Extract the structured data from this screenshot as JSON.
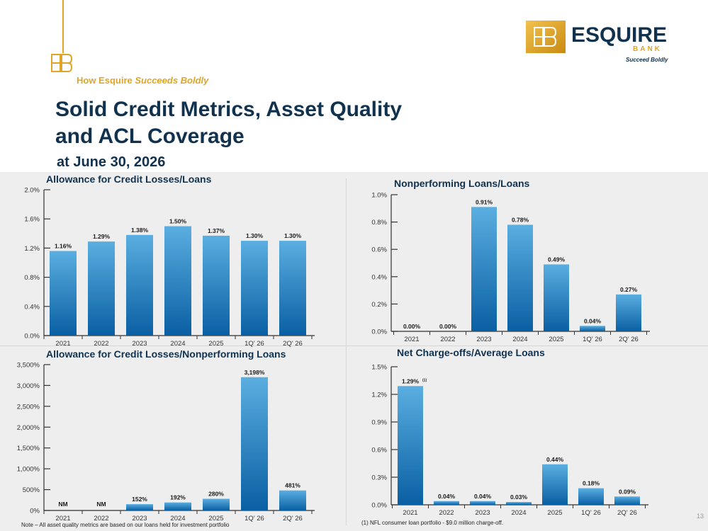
{
  "header": {
    "tagline_prefix": "How Esquire ",
    "tagline_emphasis": "Succeeds Boldly",
    "title_line1": "Solid Credit Metrics, Asset Quality",
    "title_line2": "and ACL Coverage",
    "subtitle": "at June 30, 2026"
  },
  "logo": {
    "name": "ESQUIRE",
    "bank": "BANK",
    "tagline": "Succeed Boldly"
  },
  "colors": {
    "navy": "#10324f",
    "gold": "#e0a526",
    "bar_top": "#5aaee0",
    "bar_bottom": "#0a5fa3"
  },
  "notes": {
    "left": "Note – All asset quality metrics are based on our loans held for investment portfolio",
    "right": "(1) NFL consumer loan portfolio - $9.0 million charge-off."
  },
  "page_number": "13",
  "chart_data": [
    {
      "type": "bar",
      "title": "Allowance for Credit Losses/Loans",
      "categories": [
        "2021",
        "2022",
        "2023",
        "2024",
        "2025",
        "1Q' 26",
        "2Q' 26"
      ],
      "values": [
        1.16,
        1.29,
        1.38,
        1.5,
        1.37,
        1.3,
        1.3
      ],
      "data_labels": [
        "1.16%",
        "1.29%",
        "1.38%",
        "1.50%",
        "1.37%",
        "1.30%",
        "1.30%"
      ],
      "yticks": [
        0,
        0.4,
        0.8,
        1.2,
        1.6,
        2.0
      ],
      "ytick_labels": [
        "0.0%",
        "0.4%",
        "0.8%",
        "1.2%",
        "1.6%",
        "2.0%"
      ],
      "ylim": [
        0,
        2.0
      ],
      "grid": false
    },
    {
      "type": "bar",
      "title": "Nonperforming Loans/Loans",
      "categories": [
        "2021",
        "2022",
        "2023",
        "2024",
        "2025",
        "1Q' 26",
        "2Q' 26"
      ],
      "values": [
        0.0,
        0.0,
        0.91,
        0.78,
        0.49,
        0.04,
        0.27
      ],
      "data_labels": [
        "0.00%",
        "0.00%",
        "0.91%",
        "0.78%",
        "0.49%",
        "0.04%",
        "0.27%"
      ],
      "yticks": [
        0,
        0.2,
        0.4,
        0.6,
        0.8,
        1.0
      ],
      "ytick_labels": [
        "0.0%",
        "0.2%",
        "0.4%",
        "0.6%",
        "0.8%",
        "1.0%"
      ],
      "ylim": [
        0,
        1.0
      ],
      "grid": false
    },
    {
      "type": "bar",
      "title": "Allowance for Credit Losses/Nonperforming Loans",
      "categories": [
        "2021",
        "2022",
        "2023",
        "2024",
        "2025",
        "1Q' 26",
        "2Q' 26"
      ],
      "values": [
        0,
        0,
        152,
        192,
        280,
        3198,
        481
      ],
      "data_labels": [
        "NM",
        "NM",
        "152%",
        "192%",
        "280%",
        "3,198%",
        "481%"
      ],
      "yticks": [
        0,
        500,
        1000,
        1500,
        2000,
        2500,
        3000,
        3500
      ],
      "ytick_labels": [
        "0%",
        "500%",
        "1,000%",
        "1,500%",
        "2,000%",
        "2,500%",
        "3,000%",
        "3,500%"
      ],
      "ylim": [
        0,
        3500
      ],
      "grid": false
    },
    {
      "type": "bar",
      "title": "Net Charge-offs/Average Loans",
      "categories": [
        "2021",
        "2022",
        "2023",
        "2024",
        "2025",
        "1Q' 26",
        "2Q' 26"
      ],
      "values": [
        1.29,
        0.04,
        0.04,
        0.03,
        0.44,
        0.18,
        0.09
      ],
      "data_labels": [
        "1.29%",
        "0.04%",
        "0.04%",
        "0.03%",
        "0.44%",
        "0.18%",
        "0.09%"
      ],
      "label_superscripts": [
        "(1)",
        "",
        "",
        "",
        "",
        "",
        ""
      ],
      "yticks": [
        0,
        0.3,
        0.6,
        0.9,
        1.2,
        1.5
      ],
      "ytick_labels": [
        "0.0%",
        "0.3%",
        "0.6%",
        "0.9%",
        "1.2%",
        "1.5%"
      ],
      "ylim": [
        0,
        1.5
      ],
      "grid": false
    }
  ]
}
